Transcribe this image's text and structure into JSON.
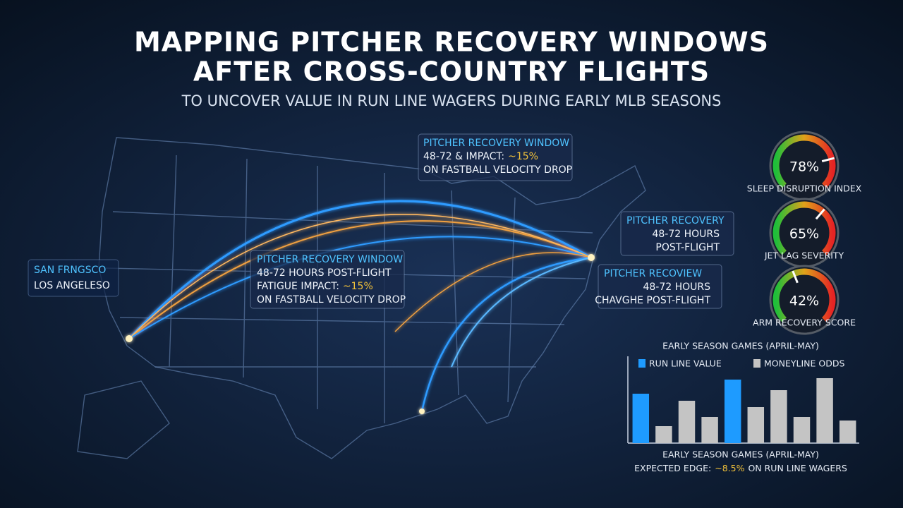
{
  "header": {
    "title": [
      "MAPPING PITCHER RECOVERY WINDOWS",
      "AFTER CROSS-COUNTRY FLIGHTS"
    ],
    "subtitle": "TO UNCOVER VALUE IN RUN LINE WAGERS DURING EARLY MLB SEASONS"
  },
  "map": {
    "city_labels": [
      "SAN FRNGSCO",
      "LOS ANGELESO"
    ],
    "callouts": [
      {
        "lines": [
          "PITCHER RECOVERY WINDOW",
          [
            "48-72 & IMPACT:",
            "~15%"
          ],
          "ON FASTBALL VELOCITY DROP"
        ]
      },
      {
        "lines": [
          "PITCHER RECOVERY WINDOW",
          "48-72 HOURS POST-FLIGHT",
          [
            "FATIGUE IMPACT:",
            "~15%"
          ],
          "ON FASTBALL VELOCITY DROP"
        ]
      },
      {
        "lines": [
          "PITCHER RECOVERY",
          "48-72 HOURS",
          "POST-FLIGHT"
        ]
      },
      {
        "lines": [
          "PITCHER RECOVIEW",
          "48-72 HOURS",
          "CHAVGHE POST-FLIGHT"
        ]
      }
    ]
  },
  "gauges": [
    {
      "label": "SLEEP DISRUPTION INDEX",
      "value": 78,
      "value_label": "78%"
    },
    {
      "label": "JET LAG SEVERITY",
      "value": 65,
      "value_label": "65%"
    },
    {
      "label": "ARM RECOVERY SCORE",
      "value": 42,
      "value_label": "42%"
    }
  ],
  "chart_data": {
    "type": "bar",
    "title": "EARLY SEASON GAMES (APRIL-MAY)",
    "x_label": "EARLY SEASON GAMES (APRIL-MAY)",
    "note": [
      "EXPECTED EDGE:",
      "~8.5%",
      "ON RUN LINE WAGERS"
    ],
    "categories": [
      null,
      null,
      null,
      null,
      null,
      null,
      null,
      null,
      null,
      null
    ],
    "series": [
      {
        "name": "RUN LINE VALUE",
        "color": "#1e9bff",
        "values": [
          70,
          null,
          null,
          null,
          90,
          null,
          null,
          null,
          null,
          null
        ]
      },
      {
        "name": "MONEYLINE ODDS",
        "color": "#c4c4c4",
        "values": [
          null,
          24,
          60,
          37,
          null,
          51,
          75,
          37,
          92,
          32
        ]
      }
    ],
    "ylim": [
      0,
      100
    ],
    "grid": false
  }
}
